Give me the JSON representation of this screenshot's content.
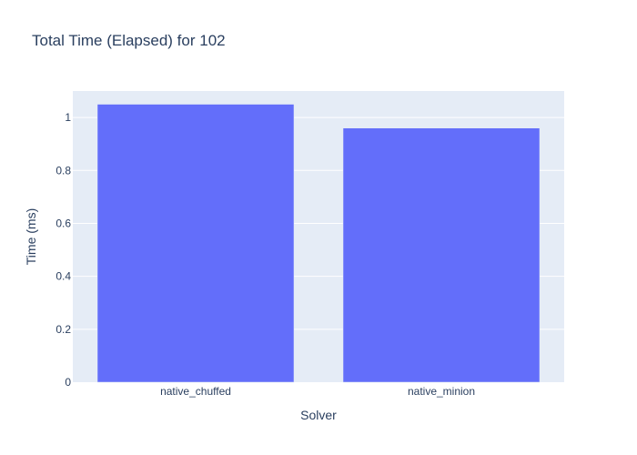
{
  "chart_data": {
    "type": "bar",
    "title": "Total Time (Elapsed) for 102",
    "xlabel": "Solver",
    "ylabel": "Time (ms)",
    "categories": [
      "native_chuffed",
      "native_minion"
    ],
    "values": [
      1.05,
      0.96
    ],
    "ylim": [
      0,
      1.1
    ],
    "yticks": [
      0,
      0.2,
      0.4,
      0.6,
      0.8,
      1
    ],
    "ytick_labels": [
      "0",
      "0.2",
      "0.4",
      "0.6",
      "0.8",
      "1"
    ],
    "grid": true,
    "legend": "none",
    "colors": {
      "bar": "#636efa",
      "plot_bg": "#e5ecf6",
      "grid": "#ffffff",
      "text": "#2a3f5f"
    }
  }
}
